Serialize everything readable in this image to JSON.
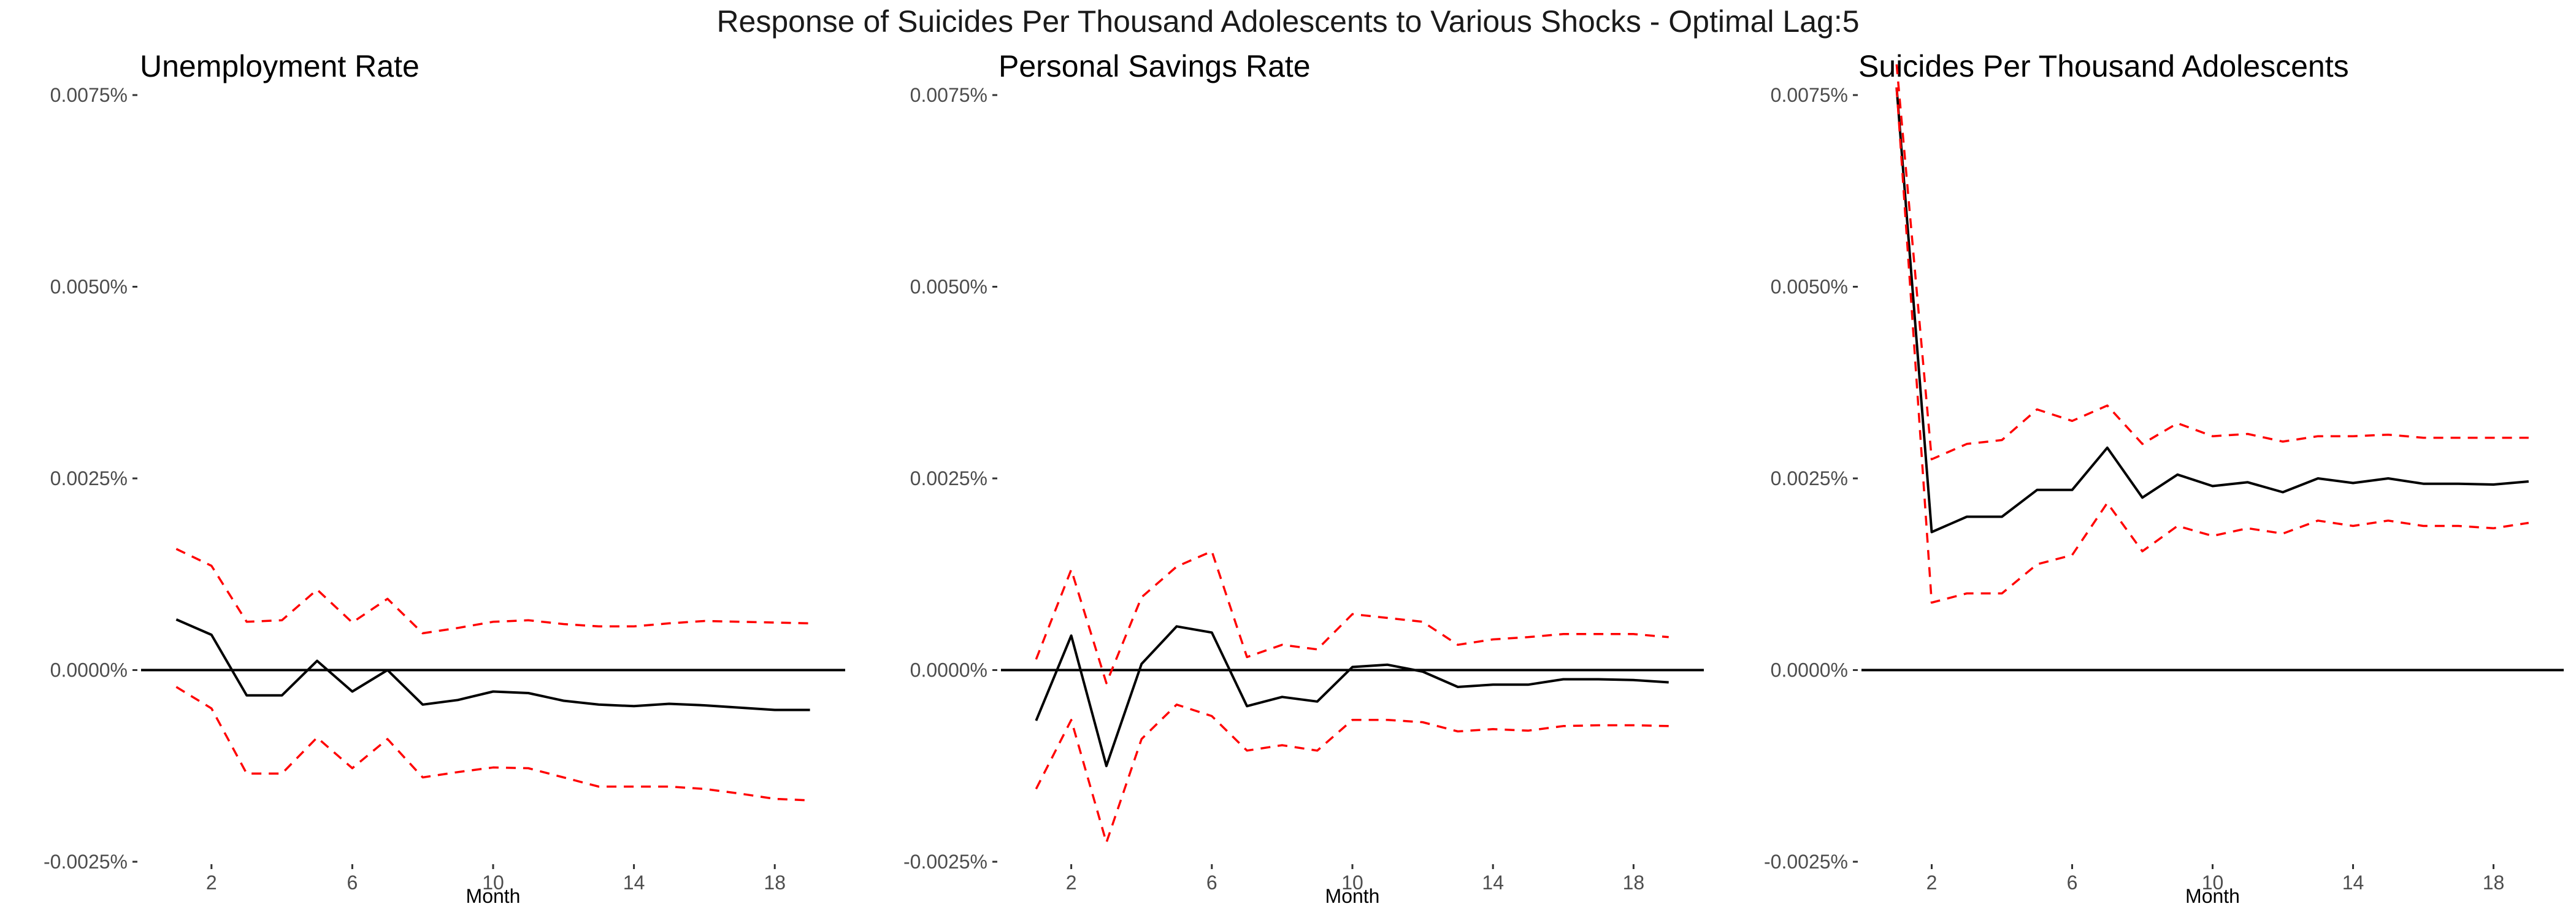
{
  "figure": {
    "title": "Response of Suicides Per Thousand Adolescents to Various Shocks - Optimal Lag:5"
  },
  "colors": {
    "response_line": "#000000",
    "ci_bands": "#ff0000",
    "zero_line": "#000000",
    "tick_text": "#4d4d4d"
  },
  "chart_data": [
    {
      "type": "line",
      "title": "Unemployment Rate",
      "xlabel": "Month",
      "ylabel": "",
      "xlim": [
        0,
        20
      ],
      "ylim": [
        -0.0025,
        0.0075
      ],
      "xticks": [
        2,
        6,
        10,
        14,
        18
      ],
      "yticks": [
        -0.0025,
        0.0,
        0.0025,
        0.005,
        0.0075
      ],
      "ytick_labels": [
        "-0.0025%",
        "0.0000%",
        "0.0025%",
        "0.0050%",
        "0.0075%"
      ],
      "grid": false,
      "zero_line": true,
      "x": [
        1,
        2,
        3,
        4,
        5,
        6,
        7,
        8,
        9,
        10,
        11,
        12,
        13,
        14,
        15,
        16,
        17,
        18,
        19
      ],
      "series": [
        {
          "role": "response",
          "style": "solid",
          "values": [
            0.00066,
            0.00046,
            -0.00033,
            -0.00033,
            0.00012,
            -0.00028,
            0.0,
            -0.00045,
            -0.00039,
            -0.00028,
            -0.0003,
            -0.0004,
            -0.00045,
            -0.00047,
            -0.00044,
            -0.00046,
            -0.00049,
            -0.00052,
            -0.00052
          ]
        },
        {
          "role": "upper",
          "style": "dashed",
          "values": [
            0.00158,
            0.00136,
            0.00063,
            0.00065,
            0.00105,
            0.00062,
            0.00093,
            0.00048,
            0.00055,
            0.00063,
            0.00065,
            0.0006,
            0.00057,
            0.00057,
            0.00061,
            0.00064,
            0.00063,
            0.00062,
            0.00061
          ]
        },
        {
          "role": "lower",
          "style": "dashed",
          "values": [
            -0.00022,
            -0.0005,
            -0.00135,
            -0.00135,
            -0.00088,
            -0.00128,
            -0.0009,
            -0.0014,
            -0.00133,
            -0.00127,
            -0.00128,
            -0.0014,
            -0.00152,
            -0.00152,
            -0.00152,
            -0.00155,
            -0.00161,
            -0.00168,
            -0.0017
          ]
        }
      ]
    },
    {
      "type": "line",
      "title": "Personal Savings Rate",
      "xlabel": "Month",
      "ylabel": "",
      "xlim": [
        0,
        20
      ],
      "ylim": [
        -0.0025,
        0.0075
      ],
      "xticks": [
        2,
        6,
        10,
        14,
        18
      ],
      "yticks": [
        -0.0025,
        0.0,
        0.0025,
        0.005,
        0.0075
      ],
      "ytick_labels": [
        "-0.0025%",
        "0.0000%",
        "0.0025%",
        "0.0050%",
        "0.0075%"
      ],
      "grid": false,
      "zero_line": true,
      "x": [
        1,
        2,
        3,
        4,
        5,
        6,
        7,
        8,
        9,
        10,
        11,
        12,
        13,
        14,
        15,
        16,
        17,
        18,
        19
      ],
      "series": [
        {
          "role": "response",
          "style": "solid",
          "values": [
            -0.00066,
            0.00045,
            -0.00125,
            8e-05,
            0.00057,
            0.00049,
            -0.00047,
            -0.00035,
            -0.00041,
            4e-05,
            7e-05,
            -2e-05,
            -0.00022,
            -0.00019,
            -0.00019,
            -0.00012,
            -0.00012,
            -0.00013,
            -0.00016
          ]
        },
        {
          "role": "upper",
          "style": "dashed",
          "values": [
            0.00014,
            0.00131,
            -0.00017,
            0.00095,
            0.00135,
            0.00155,
            0.00017,
            0.00033,
            0.00027,
            0.00073,
            0.00068,
            0.00063,
            0.00033,
            0.0004,
            0.00043,
            0.00047,
            0.00047,
            0.00047,
            0.00043
          ]
        },
        {
          "role": "lower",
          "style": "dashed",
          "values": [
            -0.00155,
            -0.00065,
            -0.00225,
            -0.0009,
            -0.00045,
            -0.0006,
            -0.00105,
            -0.00098,
            -0.00105,
            -0.00065,
            -0.00065,
            -0.00068,
            -0.0008,
            -0.00077,
            -0.00079,
            -0.00073,
            -0.00072,
            -0.00072,
            -0.00073
          ]
        }
      ]
    },
    {
      "type": "line",
      "title": "Suicides Per Thousand Adolescents",
      "xlabel": "Month",
      "ylabel": "",
      "xlim": [
        0,
        20
      ],
      "ylim": [
        -0.0025,
        0.0075
      ],
      "xticks": [
        2,
        6,
        10,
        14,
        18
      ],
      "yticks": [
        -0.0025,
        0.0,
        0.0025,
        0.005,
        0.0075
      ],
      "ytick_labels": [
        "-0.0025%",
        "0.0000%",
        "0.0025%",
        "0.0050%",
        "0.0075%"
      ],
      "grid": false,
      "zero_line": true,
      "x": [
        1,
        2,
        3,
        4,
        5,
        6,
        7,
        8,
        9,
        10,
        11,
        12,
        13,
        14,
        15,
        16,
        17,
        18,
        19
      ],
      "series": [
        {
          "role": "response",
          "style": "solid",
          "values": [
            0.0076,
            0.0018,
            0.002,
            0.002,
            0.00235,
            0.00235,
            0.0029,
            0.00225,
            0.00255,
            0.0024,
            0.00245,
            0.00232,
            0.0025,
            0.00244,
            0.0025,
            0.00243,
            0.00243,
            0.00242,
            0.00246
          ]
        },
        {
          "role": "upper",
          "style": "dashed",
          "values": [
            0.0079,
            0.00275,
            0.00295,
            0.003,
            0.0034,
            0.00325,
            0.00345,
            0.00295,
            0.00322,
            0.00305,
            0.00308,
            0.00298,
            0.00305,
            0.00305,
            0.00307,
            0.00303,
            0.00303,
            0.00303,
            0.00303
          ]
        },
        {
          "role": "lower",
          "style": "dashed",
          "values": [
            0.0076,
            0.00088,
            0.001,
            0.001,
            0.00138,
            0.0015,
            0.00218,
            0.00155,
            0.00188,
            0.00175,
            0.00185,
            0.00178,
            0.00195,
            0.00188,
            0.00195,
            0.00188,
            0.00188,
            0.00185,
            0.00192
          ]
        }
      ]
    }
  ]
}
